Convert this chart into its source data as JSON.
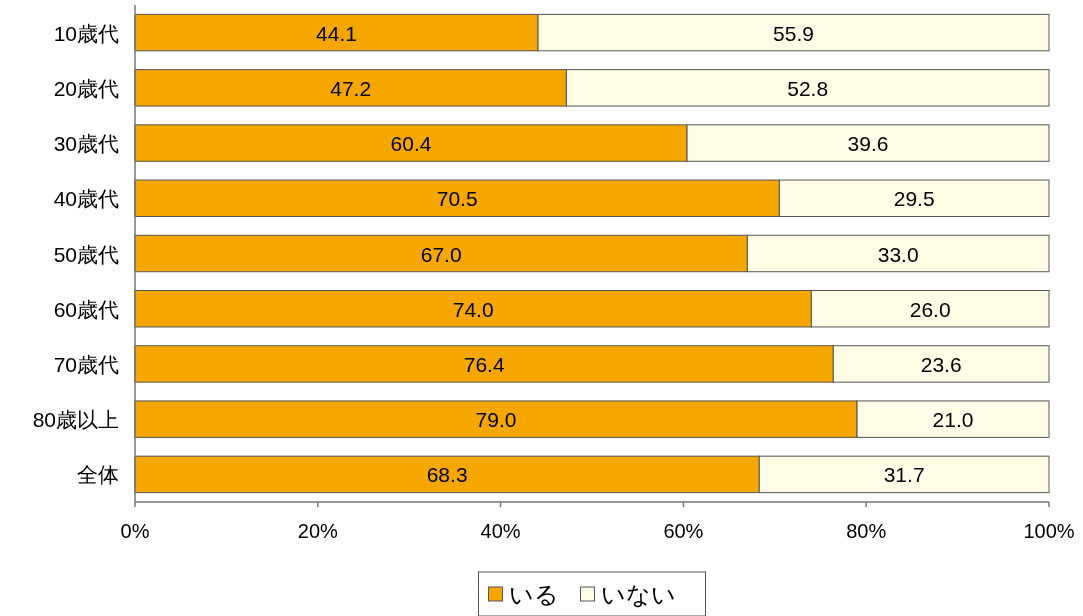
{
  "chart_data": {
    "type": "bar",
    "orientation": "horizontal",
    "stacked": true,
    "categories": [
      "10歳代",
      "20歳代",
      "30歳代",
      "40歳代",
      "50歳代",
      "60歳代",
      "70歳代",
      "80歳以上",
      "全体"
    ],
    "series": [
      {
        "name": "いる",
        "color": "#f5a700",
        "values": [
          44.1,
          47.2,
          60.4,
          70.5,
          67.0,
          74.0,
          76.4,
          79.0,
          68.3
        ],
        "value_labels": [
          "44.1",
          "47.2",
          "60.4",
          "70.5",
          "67.0",
          "74.0",
          "76.4",
          "79.0",
          "68.3"
        ]
      },
      {
        "name": "いない",
        "color": "#fffde5",
        "values": [
          55.9,
          52.8,
          39.6,
          29.5,
          33.0,
          26.0,
          23.6,
          21.0,
          31.7
        ],
        "value_labels": [
          "55.9",
          "52.8",
          "39.6",
          "29.5",
          "33.0",
          "26.0",
          "23.6",
          "21.0",
          "31.7"
        ]
      }
    ],
    "xlim": [
      0,
      100
    ],
    "xticks": [
      {
        "value": 0,
        "label": "0%"
      },
      {
        "value": 20,
        "label": "20%"
      },
      {
        "value": 40,
        "label": "40%"
      },
      {
        "value": 60,
        "label": "60%"
      },
      {
        "value": 80,
        "label": "80%"
      },
      {
        "value": 100,
        "label": "100%"
      }
    ],
    "legend": "bottom"
  }
}
